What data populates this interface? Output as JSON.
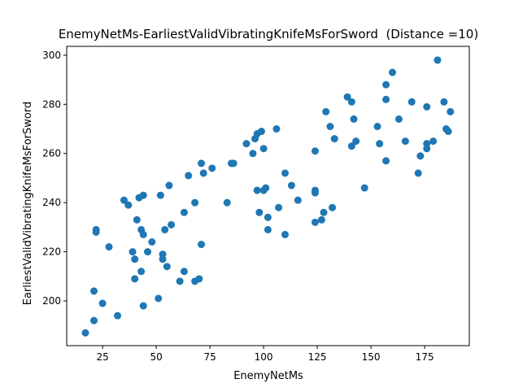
{
  "chart_data": {
    "type": "scatter",
    "title": "EnemyNetMs-EarliestValidVibratingKnifeMsForSword  (Distance =10)",
    "x_label": "EnemyNetMs",
    "y_label": "EarliestValidVibratingKnifeMsForSword",
    "series": [
      {
        "color": "#1f77b4",
        "x": [
          17,
          21,
          21,
          22,
          22,
          25,
          28,
          32,
          35,
          37,
          39,
          40,
          40,
          41,
          42,
          44,
          43,
          44,
          43,
          44,
          46,
          48,
          51,
          52,
          53,
          53,
          54,
          55,
          56,
          57,
          61,
          63,
          63,
          65,
          68,
          68,
          70,
          71,
          71,
          72,
          76,
          83,
          85,
          86,
          92,
          95,
          97,
          96,
          97,
          98,
          99,
          100,
          100,
          101,
          102,
          102,
          106,
          107,
          110,
          110,
          113,
          116,
          124,
          124,
          124,
          124,
          127,
          128,
          129,
          131,
          132,
          133,
          139,
          141,
          141,
          142,
          143,
          147,
          153,
          154,
          157,
          157,
          157,
          160,
          163,
          166,
          169,
          172,
          173,
          176,
          176,
          176,
          179,
          181,
          184,
          185,
          186,
          187
        ],
        "values": [
          187,
          192,
          204,
          229,
          228,
          199,
          222,
          194,
          241,
          239,
          220,
          217,
          209,
          233,
          242,
          243,
          229,
          227,
          212,
          198,
          220,
          224,
          201,
          243,
          219,
          217,
          229,
          214,
          247,
          231,
          208,
          236,
          212,
          251,
          240,
          208,
          209,
          256,
          223,
          252,
          254,
          240,
          256,
          256,
          264,
          260,
          268,
          266,
          245,
          236,
          269,
          262,
          245,
          246,
          234,
          229,
          270,
          238,
          252,
          227,
          247,
          241,
          261,
          245,
          244,
          232,
          233,
          236,
          277,
          271,
          238,
          266,
          283,
          281,
          263,
          274,
          265,
          246,
          271,
          264,
          288,
          282,
          257,
          293,
          274,
          265,
          281,
          252,
          259,
          279,
          264,
          262,
          265,
          298,
          281,
          270,
          269,
          277
        ]
      }
    ],
    "xlim": [
      8.3,
      195.8
    ],
    "ylim": [
      181.8,
      303.6
    ],
    "xticks": [
      25,
      50,
      75,
      100,
      125,
      150,
      175
    ],
    "yticks": [
      200,
      220,
      240,
      260,
      280,
      300
    ]
  }
}
